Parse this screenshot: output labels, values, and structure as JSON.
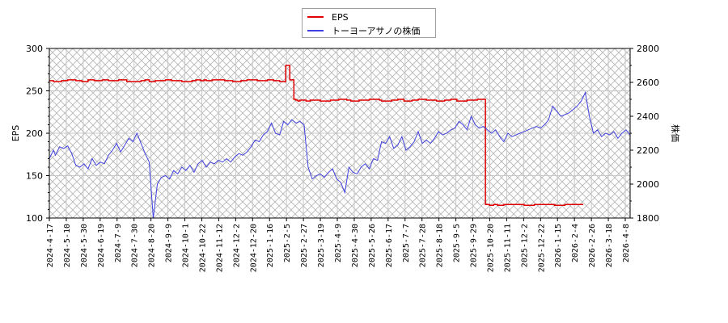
{
  "legend": {
    "items": [
      {
        "label": "EPS",
        "color": "#e00000"
      },
      {
        "label": "トーヨーアサノの株価",
        "color": "#4040e0"
      }
    ]
  },
  "axes": {
    "left_title": "EPS",
    "right_title": "株価",
    "left_ticks": [
      "100",
      "150",
      "200",
      "250",
      "300"
    ],
    "right_ticks": [
      "1800",
      "2000",
      "2200",
      "2400",
      "2600",
      "2800"
    ]
  },
  "chart_data": {
    "type": "line",
    "title": "",
    "xlabel": "",
    "ylabel": "EPS",
    "y2label": "株価",
    "ylim": [
      100,
      300
    ],
    "y2lim": [
      1800,
      2800
    ],
    "grid": true,
    "legend_position": "top-center",
    "x_tick_labels": [
      "2024-4-17",
      "2024-5-10",
      "2024-5-30",
      "2024-6-19",
      "2024-7-9",
      "2024-7-30",
      "2024-8-20",
      "2024-9-9",
      "2024-10-1",
      "2024-10-22",
      "2024-11-12",
      "2024-12-2",
      "2024-12-20",
      "2025-1-16",
      "2025-2-5",
      "2025-2-27",
      "2025-3-19",
      "2025-4-9",
      "2025-4-30",
      "2025-5-26",
      "2025-6-17",
      "2025-7-7",
      "2025-7-28",
      "2025-8-18",
      "2025-9-5",
      "2025-9-29",
      "2025-10-20",
      "2025-11-11",
      "2025-12-2",
      "2025-12-22",
      "2026-1-15",
      "2026-2-4",
      "2026-2-26",
      "2026-3-18",
      "2026-4-8"
    ],
    "series": [
      {
        "name": "EPS",
        "axis": "left",
        "color": "#e00000",
        "step": true,
        "x": [
          0,
          2,
          6,
          9,
          13,
          16,
          19,
          22,
          26,
          29,
          34,
          38,
          45,
          47,
          49,
          52,
          57,
          60,
          65,
          70,
          72,
          74,
          76,
          77,
          80,
          86,
          90,
          94,
          97,
          102,
          107,
          110,
          113,
          116,
          118,
          120,
          121,
          122,
          123,
          126,
          128,
          133,
          138,
          142,
          146,
          148,
          152,
          157,
          162,
          163,
          168,
          171,
          174,
          178,
          181,
          185,
          190,
          194,
          197,
          200,
          205,
          210,
          214,
          216,
          218,
          220,
          223,
          227,
          233,
          238,
          243,
          248,
          253,
          258,
          262
        ],
        "values": [
          262,
          261,
          262,
          263,
          262,
          261,
          263,
          262,
          263,
          262,
          263,
          261,
          262,
          263,
          261,
          262,
          263,
          262,
          261,
          262,
          263,
          262,
          263,
          262,
          263,
          262,
          261,
          262,
          263,
          262,
          263,
          262,
          261,
          280,
          263,
          240,
          239,
          238,
          239,
          238,
          239,
          238,
          239,
          240,
          239,
          238,
          239,
          240,
          239,
          238,
          239,
          240,
          238,
          239,
          240,
          239,
          238,
          239,
          240,
          238,
          239,
          240,
          116,
          115,
          116,
          115,
          116,
          116,
          115,
          116,
          116,
          115,
          116,
          116,
          116
        ],
        "x_end_index": 262
      },
      {
        "name": "トーヨーアサノの株価",
        "axis": "right",
        "color": "#4040e0",
        "x": [
          0,
          2,
          3,
          5,
          7,
          9,
          11,
          13,
          15,
          17,
          19,
          21,
          23,
          25,
          27,
          29,
          31,
          33,
          35,
          37,
          39,
          41,
          43,
          45,
          47,
          49,
          51,
          53,
          55,
          57,
          59,
          61,
          63,
          65,
          67,
          69,
          71,
          73,
          75,
          77,
          79,
          81,
          83,
          85,
          87,
          89,
          91,
          93,
          95,
          97,
          99,
          101,
          103,
          105,
          107,
          109,
          111,
          113,
          115,
          117,
          119,
          121,
          123,
          125,
          127,
          129,
          131,
          133,
          135,
          137,
          139,
          141,
          143,
          145,
          147,
          149,
          151,
          153,
          155,
          157,
          159,
          161,
          163,
          165,
          167,
          169,
          171,
          173,
          175,
          177,
          179,
          181,
          183,
          185,
          187,
          189,
          191,
          193,
          195,
          197,
          199,
          201,
          203,
          205,
          207,
          209,
          211,
          213,
          215,
          217,
          219,
          221,
          223,
          225,
          227,
          229,
          231,
          233,
          235,
          237,
          239,
          241,
          243,
          245,
          247,
          249,
          251,
          253,
          255,
          257,
          259,
          261,
          263,
          265,
          267,
          269,
          271,
          273,
          275,
          277,
          279,
          281,
          283,
          285
        ],
        "values": [
          2150,
          2200,
          2170,
          2220,
          2210,
          2225,
          2180,
          2110,
          2100,
          2120,
          2090,
          2150,
          2110,
          2130,
          2120,
          2170,
          2200,
          2240,
          2190,
          2230,
          2270,
          2250,
          2300,
          2240,
          2180,
          2130,
          1800,
          2000,
          2040,
          2050,
          2030,
          2080,
          2060,
          2100,
          2080,
          2110,
          2070,
          2120,
          2140,
          2100,
          2130,
          2120,
          2140,
          2130,
          2150,
          2130,
          2160,
          2180,
          2170,
          2190,
          2220,
          2260,
          2250,
          2290,
          2310,
          2360,
          2300,
          2290,
          2370,
          2350,
          2380,
          2360,
          2370,
          2350,
          2100,
          2030,
          2050,
          2060,
          2040,
          2070,
          2090,
          2030,
          2010,
          1950,
          2100,
          2070,
          2060,
          2100,
          2120,
          2090,
          2150,
          2140,
          2250,
          2240,
          2280,
          2210,
          2230,
          2280,
          2200,
          2220,
          2250,
          2310,
          2240,
          2260,
          2240,
          2270,
          2310,
          2290,
          2300,
          2320,
          2330,
          2370,
          2350,
          2320,
          2400,
          2350,
          2330,
          2340,
          2320,
          2300,
          2320,
          2280,
          2250,
          2300,
          2280,
          2290,
          2300,
          2310,
          2320,
          2330,
          2340,
          2330,
          2350,
          2380,
          2460,
          2430,
          2400,
          2410,
          2420,
          2440,
          2460,
          2490,
          2540,
          2400,
          2300,
          2320,
          2280,
          2300,
          2290,
          2310,
          2270,
          2300,
          2320,
          2290
        ],
        "x_end_index": 285
      }
    ]
  }
}
